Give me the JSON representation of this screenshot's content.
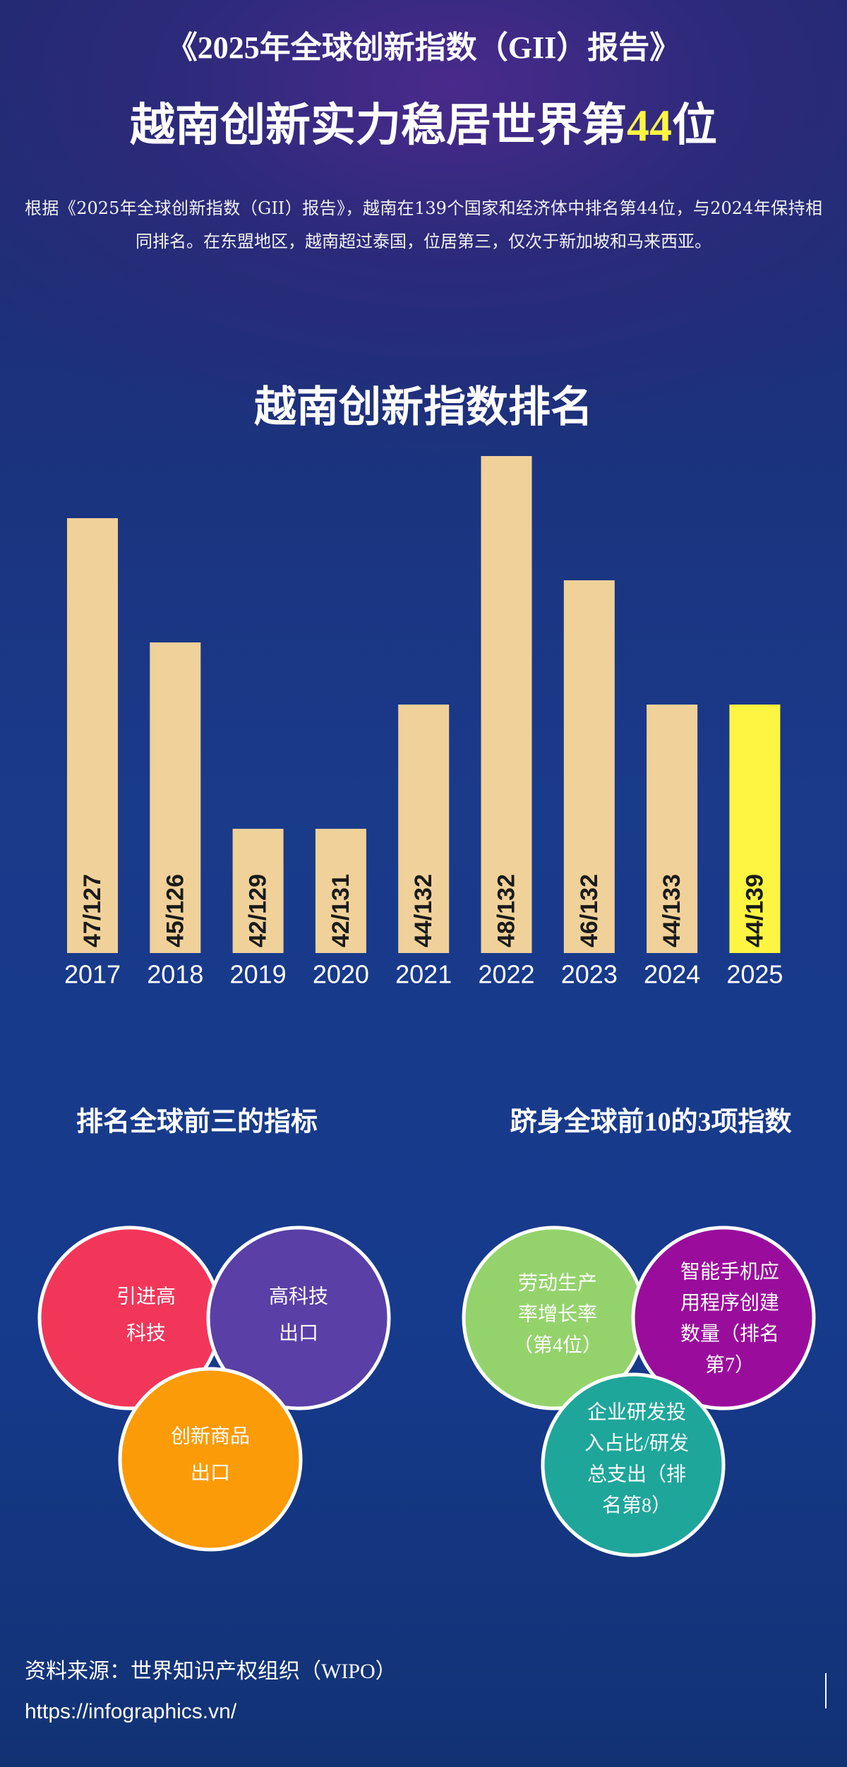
{
  "header": {
    "kicker": "《2025年全球创新指数（GII）报告》",
    "title_parts": [
      "越南创新实力稳居世界第",
      "44",
      "位"
    ],
    "intro": "根据《2025年全球创新指数（GII）报告》，越南在139个国家和经济体中排名第44位，与2024年保持相同排名。在东盟地区，越南超过泰国，位居第三，仅次于新加坡和马来西亚。"
  },
  "chart_data": {
    "type": "bar",
    "title": "越南创新指数排名",
    "categories": [
      "2017",
      "2018",
      "2019",
      "2020",
      "2021",
      "2022",
      "2023",
      "2024",
      "2025"
    ],
    "values": [
      47,
      45,
      42,
      42,
      44,
      48,
      46,
      44,
      44
    ],
    "value_labels": [
      "47/127",
      "45/126",
      "42/129",
      "42/131",
      "44/132",
      "48/132",
      "46/132",
      "44/133",
      "44/139"
    ],
    "colors": [
      "#f0d199",
      "#f0d199",
      "#f0d199",
      "#f0d199",
      "#f0d199",
      "#f0d199",
      "#f0d199",
      "#f0d199",
      "#fdf542"
    ],
    "ylim": [
      40,
      48
    ]
  },
  "sections": [
    {
      "title": "排名全球前三的指标",
      "items": [
        {
          "lines": [
            "引进高",
            "科技"
          ],
          "color": "#f2365a"
        },
        {
          "lines": [
            "高科技",
            "出口"
          ],
          "color": "#5a3fa6"
        },
        {
          "lines": [
            "创新商品",
            "出口"
          ],
          "color": "#fb9b08"
        }
      ]
    },
    {
      "title": "跻身全球前10的3项指数",
      "items": [
        {
          "lines": [
            "劳动生产",
            "率增长率",
            "（第4位）"
          ],
          "color": "#94d36c"
        },
        {
          "lines": [
            "智能手机应",
            "用程序创建",
            "数量（排名",
            "第7）"
          ],
          "color": "#9a0d9c"
        },
        {
          "lines": [
            "企业研发投",
            "入占比/研发",
            "总支出（排",
            "名第8）"
          ],
          "color": "#1ea69a"
        }
      ]
    }
  ],
  "footer": {
    "source": "资料来源：世界知识产权组织（WIPO）",
    "url": "https://infographics.vn/"
  }
}
